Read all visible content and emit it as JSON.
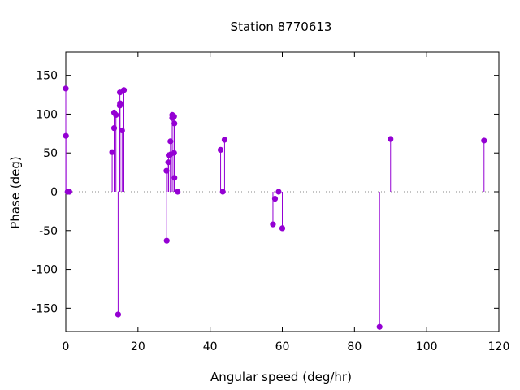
{
  "chart_data": {
    "type": "scatter",
    "style": "impulses-with-points",
    "title": "Station 8770613",
    "xlabel": "Angular speed (deg/hr)",
    "ylabel": "Phase (deg)",
    "xlim": [
      0,
      120
    ],
    "ylim": [
      -180,
      180
    ],
    "xticks": [
      0,
      20,
      40,
      60,
      80,
      100,
      120
    ],
    "yticks": [
      -150,
      -100,
      -50,
      0,
      50,
      100,
      150
    ],
    "grid": false,
    "zero_line": "dotted",
    "legend": "none",
    "color": "#9400d3",
    "points": [
      {
        "x": 0.0,
        "y": 133
      },
      {
        "x": 0.04,
        "y": 72
      },
      {
        "x": 0.5,
        "y": 0
      },
      {
        "x": 1.0,
        "y": 0
      },
      {
        "x": 12.85,
        "y": 51
      },
      {
        "x": 13.4,
        "y": 82
      },
      {
        "x": 13.4,
        "y": 102
      },
      {
        "x": 13.9,
        "y": 99
      },
      {
        "x": 14.5,
        "y": -158
      },
      {
        "x": 14.96,
        "y": 111
      },
      {
        "x": 15.04,
        "y": 114
      },
      {
        "x": 15.0,
        "y": 128
      },
      {
        "x": 15.6,
        "y": 79
      },
      {
        "x": 16.1,
        "y": 131
      },
      {
        "x": 27.9,
        "y": 27
      },
      {
        "x": 27.97,
        "y": -63
      },
      {
        "x": 28.4,
        "y": 38
      },
      {
        "x": 28.5,
        "y": 47
      },
      {
        "x": 29.0,
        "y": 65
      },
      {
        "x": 29.0,
        "y": 48
      },
      {
        "x": 29.5,
        "y": 99
      },
      {
        "x": 29.5,
        "y": 95
      },
      {
        "x": 30.0,
        "y": 50
      },
      {
        "x": 30.0,
        "y": 97
      },
      {
        "x": 30.1,
        "y": 18
      },
      {
        "x": 30.1,
        "y": 88
      },
      {
        "x": 31.0,
        "y": 0
      },
      {
        "x": 42.9,
        "y": 54
      },
      {
        "x": 43.5,
        "y": 0
      },
      {
        "x": 44.0,
        "y": 67
      },
      {
        "x": 57.4,
        "y": -42
      },
      {
        "x": 57.97,
        "y": -9
      },
      {
        "x": 58.98,
        "y": 0
      },
      {
        "x": 60.0,
        "y": -47
      },
      {
        "x": 86.95,
        "y": -174
      },
      {
        "x": 90.0,
        "y": 68
      },
      {
        "x": 115.9,
        "y": 66
      }
    ]
  }
}
